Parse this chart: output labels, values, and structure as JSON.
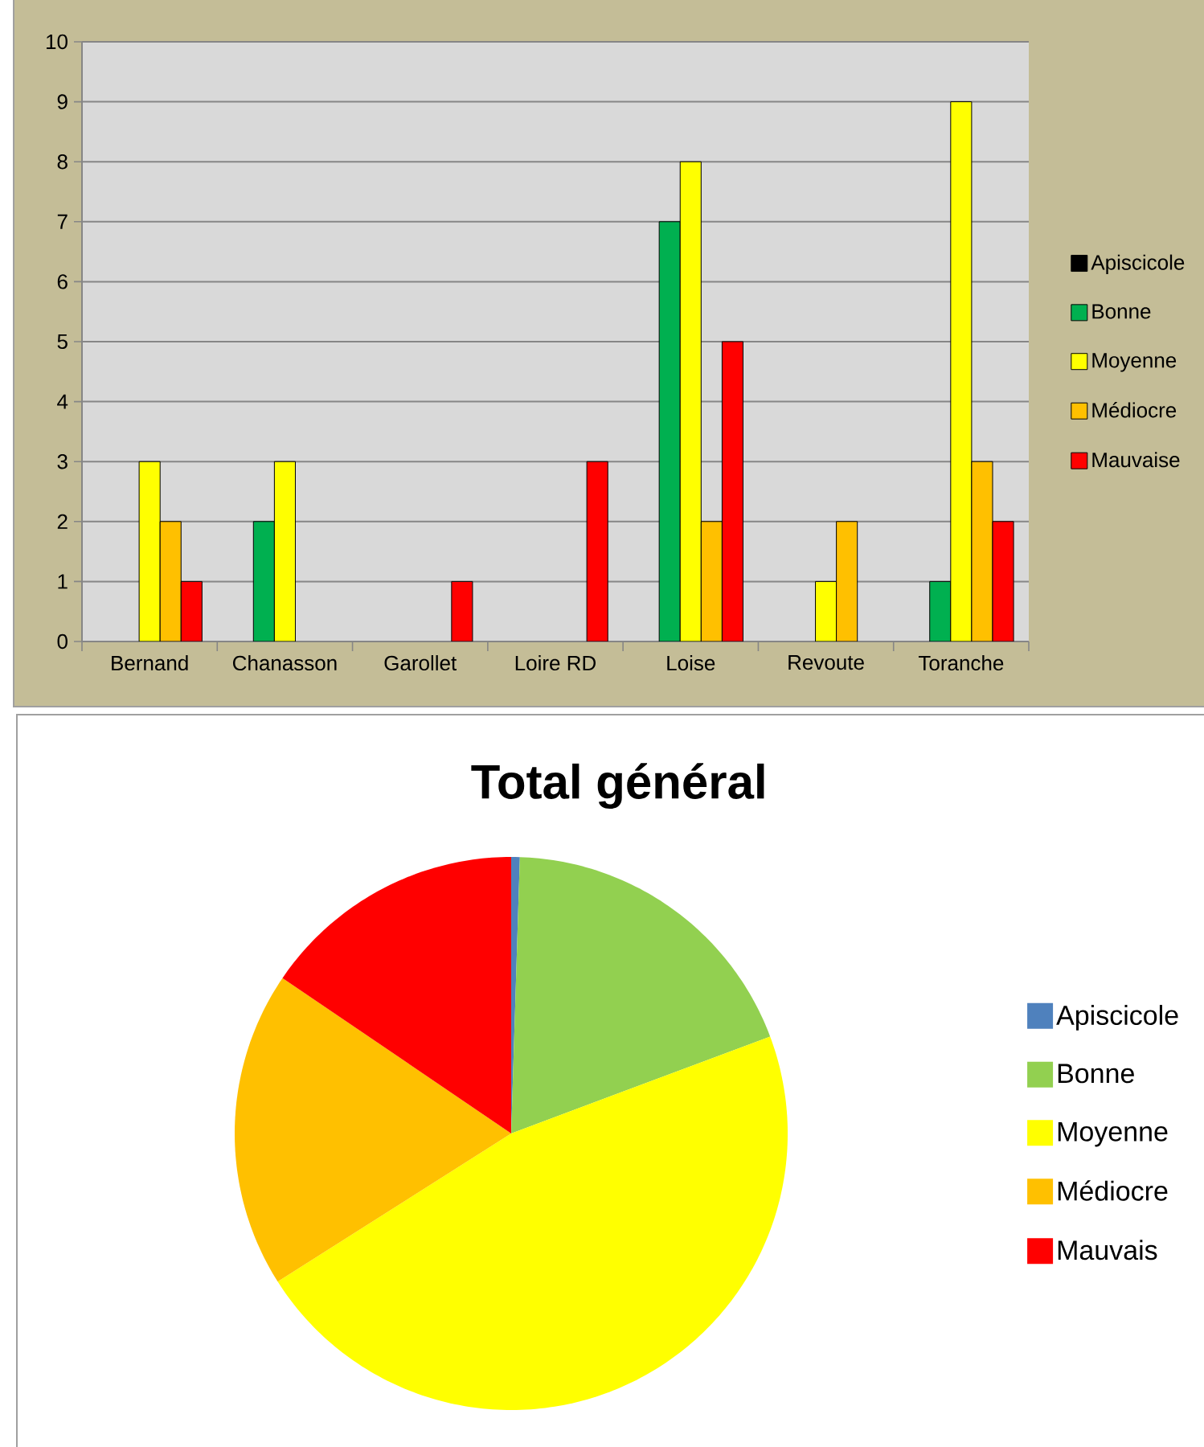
{
  "chart_data": [
    {
      "type": "bar",
      "categories": [
        "Bernand",
        "Chanasson",
        "Garollet",
        "Loire RD",
        "Loise",
        "Revoute",
        "Toranche"
      ],
      "series": [
        {
          "name": "Apiscicole",
          "color": "#000000",
          "values": [
            null,
            null,
            null,
            null,
            null,
            null,
            null
          ]
        },
        {
          "name": "Bonne",
          "color": "#00b050",
          "values": [
            null,
            2,
            null,
            null,
            7,
            null,
            1
          ]
        },
        {
          "name": "Moyenne",
          "color": "#ffff00",
          "values": [
            3,
            3,
            null,
            null,
            8,
            1,
            9
          ]
        },
        {
          "name": "Médiocre",
          "color": "#ffc000",
          "values": [
            2,
            null,
            null,
            null,
            2,
            2,
            3
          ]
        },
        {
          "name": "Mauvaise",
          "color": "#ff0000",
          "values": [
            1,
            null,
            1,
            3,
            5,
            null,
            2
          ]
        }
      ],
      "ylim": [
        0,
        10
      ],
      "yticks": [
        0,
        1,
        2,
        3,
        4,
        5,
        6,
        7,
        8,
        9,
        10
      ],
      "grid": "y",
      "legend": "right"
    },
    {
      "type": "pie",
      "title": "Total général",
      "categories": [
        "Apiscicole",
        "Bonne",
        "Moyenne",
        "Médiocre",
        "Mauvais"
      ],
      "values": [
        0.5,
        18.8,
        46.7,
        18.5,
        15.5
      ],
      "colors": [
        "#4f81bd",
        "#92d050",
        "#ffff00",
        "#ffc000",
        "#ff0000"
      ],
      "legend": "right"
    }
  ]
}
